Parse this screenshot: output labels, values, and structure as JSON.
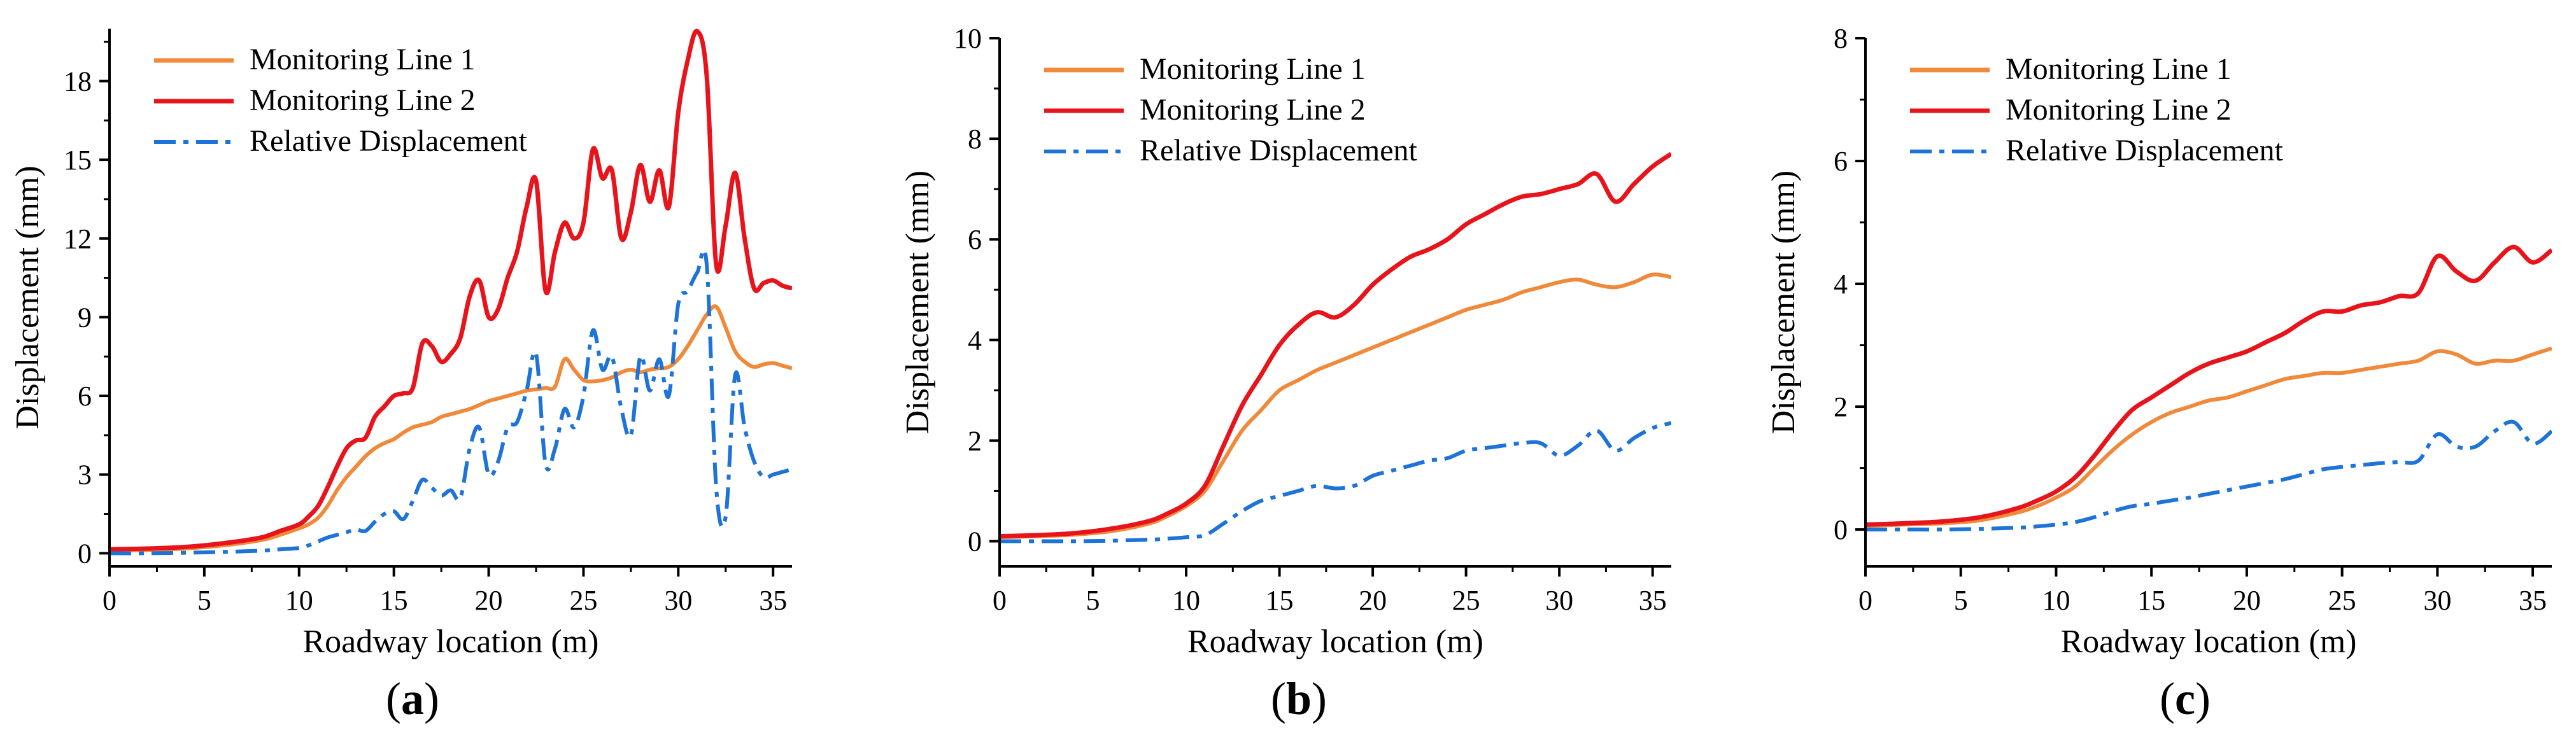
{
  "figure": {
    "panel_labels": [
      "(a)",
      "(b)",
      "(c)"
    ]
  },
  "chart_data": [
    {
      "type": "line",
      "panel": "(a)",
      "xlabel": "Roadway location (m)",
      "ylabel": "Displacement (mm)",
      "xlim": [
        0,
        36
      ],
      "ylim": [
        -0.5,
        20
      ],
      "xticks": [
        0,
        5,
        10,
        15,
        20,
        25,
        30,
        35
      ],
      "yticks": [
        0,
        3,
        6,
        9,
        12,
        15,
        18
      ],
      "legend_position": "top-left",
      "series": [
        {
          "name": "Monitoring Line 1",
          "color": "#F0893A",
          "style": "solid",
          "x": [
            0,
            2,
            4,
            6,
            8,
            9,
            10,
            10.5,
            11,
            11.5,
            12,
            12.5,
            13,
            13.5,
            14,
            14.5,
            15,
            15.5,
            16,
            16.5,
            17,
            17.5,
            18,
            18.5,
            19,
            19.5,
            20,
            20.5,
            21,
            21.5,
            22,
            22.5,
            23,
            23.5,
            24,
            24.5,
            25,
            25.5,
            26,
            26.5,
            27,
            27.5,
            28,
            28.5,
            29,
            29.5,
            30,
            30.5,
            31,
            31.5,
            32,
            32.5,
            33,
            33.5,
            34,
            34.5,
            35,
            35.5,
            36
          ],
          "y": [
            0.1,
            0.12,
            0.18,
            0.3,
            0.5,
            0.7,
            0.95,
            1.1,
            1.35,
            1.8,
            2.4,
            2.9,
            3.3,
            3.7,
            4.0,
            4.2,
            4.35,
            4.6,
            4.8,
            4.9,
            5.0,
            5.2,
            5.3,
            5.4,
            5.5,
            5.65,
            5.8,
            5.9,
            6.0,
            6.1,
            6.2,
            6.25,
            6.3,
            6.35,
            7.4,
            7.0,
            6.6,
            6.55,
            6.6,
            6.7,
            6.9,
            7.0,
            6.9,
            7.0,
            7.05,
            7.1,
            7.4,
            7.9,
            8.5,
            9.1,
            9.4,
            8.6,
            7.7,
            7.3,
            7.1,
            7.2,
            7.25,
            7.15,
            7.05
          ]
        },
        {
          "name": "Monitoring Line 2",
          "color": "#E8141B",
          "style": "solid",
          "x": [
            0,
            2,
            4,
            6,
            8,
            9,
            10,
            10.5,
            11,
            11.5,
            12,
            12.5,
            13,
            13.5,
            14,
            14.5,
            15,
            15.5,
            16,
            16.5,
            17,
            17.5,
            18,
            18.5,
            19,
            19.5,
            20,
            20.5,
            21,
            21.5,
            22,
            22.5,
            23,
            23.5,
            24,
            24.5,
            25,
            25.5,
            26,
            26.5,
            27,
            27.5,
            28,
            28.5,
            29,
            29.5,
            30,
            30.5,
            31,
            31.5,
            32,
            32.5,
            33,
            33.5,
            34,
            34.5,
            35,
            35.5,
            36
          ],
          "y": [
            0.15,
            0.18,
            0.24,
            0.38,
            0.6,
            0.85,
            1.1,
            1.4,
            1.8,
            2.5,
            3.3,
            4.0,
            4.3,
            4.4,
            5.2,
            5.6,
            6.0,
            6.1,
            6.3,
            8.0,
            7.9,
            7.3,
            7.6,
            8.2,
            9.8,
            10.4,
            9.0,
            9.3,
            10.5,
            11.5,
            13.2,
            14.2,
            10.0,
            11.5,
            12.6,
            12.0,
            12.6,
            15.4,
            14.3,
            14.6,
            12.0,
            13.0,
            14.8,
            13.4,
            14.6,
            13.2,
            16.8,
            18.8,
            19.9,
            18.2,
            11.0,
            12.5,
            14.5,
            12.0,
            10.1,
            10.3,
            10.4,
            10.2,
            10.1
          ]
        },
        {
          "name": "Relative Displacement",
          "color": "#1E73D8",
          "style": "dashdot",
          "x": [
            0,
            2,
            4,
            6,
            8,
            9,
            10,
            10.5,
            11,
            11.5,
            12,
            12.5,
            13,
            13.5,
            14,
            14.5,
            15,
            15.5,
            16,
            16.5,
            17,
            17.5,
            18,
            18.5,
            19,
            19.5,
            20,
            20.5,
            21,
            21.5,
            22,
            22.5,
            23,
            23.5,
            24,
            24.5,
            25,
            25.5,
            26,
            26.5,
            27,
            27.5,
            28,
            28.5,
            29,
            29.5,
            30,
            30.5,
            31,
            31.5,
            32,
            32.5,
            33,
            33.5,
            34,
            34.5,
            35,
            35.5,
            36
          ],
          "y": [
            0,
            0,
            0.02,
            0.05,
            0.1,
            0.15,
            0.2,
            0.3,
            0.45,
            0.6,
            0.7,
            0.8,
            0.9,
            0.85,
            1.2,
            1.5,
            1.6,
            1.3,
            2.0,
            2.8,
            2.5,
            2.2,
            2.4,
            2.1,
            4.0,
            4.8,
            3.0,
            3.5,
            4.8,
            5.0,
            6.2,
            7.6,
            3.4,
            4.0,
            5.5,
            4.8,
            6.0,
            8.5,
            7.0,
            7.5,
            5.5,
            4.5,
            7.5,
            6.2,
            7.4,
            6.0,
            9.5,
            10.0,
            10.7,
            11.0,
            2.5,
            1.4,
            6.8,
            4.8,
            3.5,
            2.9,
            3.0,
            3.1,
            3.2
          ]
        }
      ]
    },
    {
      "type": "line",
      "panel": "(b)",
      "xlabel": "Roadway location (m)",
      "ylabel": "Displacement (mm)",
      "xlim": [
        0,
        36
      ],
      "ylim": [
        -0.5,
        10
      ],
      "xticks": [
        0,
        5,
        10,
        15,
        20,
        25,
        30,
        35
      ],
      "yticks": [
        0,
        2,
        4,
        6,
        8,
        10
      ],
      "legend_position": "top-left",
      "series": [
        {
          "name": "Monitoring Line 1",
          "color": "#F0893A",
          "style": "solid",
          "x": [
            0,
            2,
            4,
            6,
            8,
            9,
            10,
            11,
            12,
            13,
            14,
            15,
            16,
            17,
            18,
            19,
            20,
            21,
            22,
            23,
            24,
            25,
            26,
            27,
            28,
            29,
            30,
            31,
            32,
            33,
            34,
            35,
            36
          ],
          "y": [
            0.08,
            0.1,
            0.13,
            0.2,
            0.35,
            0.5,
            0.7,
            1.0,
            1.6,
            2.2,
            2.6,
            3.0,
            3.2,
            3.4,
            3.55,
            3.7,
            3.85,
            4.0,
            4.15,
            4.3,
            4.45,
            4.6,
            4.7,
            4.8,
            4.95,
            5.05,
            5.15,
            5.2,
            5.1,
            5.05,
            5.15,
            5.3,
            5.25
          ]
        },
        {
          "name": "Monitoring Line 2",
          "color": "#E8141B",
          "style": "solid",
          "x": [
            0,
            2,
            4,
            6,
            8,
            9,
            10,
            11,
            12,
            13,
            14,
            15,
            16,
            17,
            18,
            19,
            20,
            21,
            22,
            23,
            24,
            25,
            26,
            27,
            28,
            29,
            30,
            31,
            32,
            33,
            34,
            35,
            36
          ],
          "y": [
            0.1,
            0.12,
            0.16,
            0.25,
            0.4,
            0.55,
            0.75,
            1.1,
            1.9,
            2.7,
            3.3,
            3.9,
            4.3,
            4.55,
            4.45,
            4.7,
            5.1,
            5.4,
            5.65,
            5.8,
            6.0,
            6.3,
            6.5,
            6.7,
            6.85,
            6.9,
            7.0,
            7.1,
            7.3,
            6.75,
            7.1,
            7.45,
            7.7
          ]
        },
        {
          "name": "Relative Displacement",
          "color": "#1E73D8",
          "style": "dashdot",
          "x": [
            0,
            2,
            4,
            6,
            8,
            9,
            10,
            11,
            12,
            13,
            14,
            15,
            16,
            17,
            18,
            19,
            20,
            21,
            22,
            23,
            24,
            25,
            26,
            27,
            28,
            29,
            30,
            31,
            32,
            33,
            34,
            35,
            36
          ],
          "y": [
            0,
            0,
            0,
            0.01,
            0.03,
            0.05,
            0.08,
            0.12,
            0.35,
            0.6,
            0.8,
            0.9,
            1.0,
            1.1,
            1.05,
            1.1,
            1.3,
            1.4,
            1.5,
            1.6,
            1.65,
            1.8,
            1.85,
            1.9,
            1.95,
            1.95,
            1.7,
            1.9,
            2.2,
            1.8,
            2.05,
            2.25,
            2.35
          ]
        }
      ]
    },
    {
      "type": "line",
      "panel": "(c)",
      "xlabel": "Roadway location (m)",
      "ylabel": "Displacement (mm)",
      "xlim": [
        0,
        36
      ],
      "ylim": [
        -0.6,
        8
      ],
      "xticks": [
        0,
        5,
        10,
        15,
        20,
        25,
        30,
        35
      ],
      "yticks": [
        0,
        2,
        4,
        6,
        8
      ],
      "legend_position": "top-left",
      "series": [
        {
          "name": "Monitoring Line 1",
          "color": "#F0893A",
          "style": "solid",
          "x": [
            0,
            2,
            4,
            6,
            8,
            9,
            10,
            11,
            12,
            13,
            14,
            15,
            16,
            17,
            18,
            19,
            20,
            21,
            22,
            23,
            24,
            25,
            26,
            27,
            28,
            29,
            30,
            31,
            32,
            33,
            34,
            35,
            36
          ],
          "y": [
            0.06,
            0.08,
            0.1,
            0.15,
            0.28,
            0.38,
            0.52,
            0.7,
            1.0,
            1.3,
            1.55,
            1.75,
            1.9,
            2.0,
            2.1,
            2.15,
            2.25,
            2.35,
            2.45,
            2.5,
            2.55,
            2.55,
            2.6,
            2.65,
            2.7,
            2.75,
            2.9,
            2.85,
            2.7,
            2.75,
            2.75,
            2.85,
            2.95
          ]
        },
        {
          "name": "Monitoring Line 2",
          "color": "#E8141B",
          "style": "solid",
          "x": [
            0,
            2,
            4,
            6,
            8,
            9,
            10,
            11,
            12,
            13,
            14,
            15,
            16,
            17,
            18,
            19,
            20,
            21,
            22,
            23,
            24,
            25,
            26,
            27,
            28,
            29,
            30,
            31,
            32,
            33,
            34,
            35,
            36
          ],
          "y": [
            0.08,
            0.1,
            0.13,
            0.2,
            0.35,
            0.47,
            0.62,
            0.85,
            1.2,
            1.6,
            1.95,
            2.15,
            2.35,
            2.55,
            2.7,
            2.8,
            2.9,
            3.05,
            3.2,
            3.4,
            3.55,
            3.55,
            3.65,
            3.7,
            3.8,
            3.85,
            4.45,
            4.2,
            4.05,
            4.35,
            4.6,
            4.35,
            4.55
          ]
        },
        {
          "name": "Relative Displacement",
          "color": "#1E73D8",
          "style": "dashdot",
          "x": [
            0,
            2,
            4,
            6,
            8,
            9,
            10,
            11,
            12,
            13,
            14,
            15,
            16,
            17,
            18,
            19,
            20,
            21,
            22,
            23,
            24,
            25,
            26,
            27,
            28,
            29,
            30,
            31,
            32,
            33,
            34,
            35,
            36
          ],
          "y": [
            0,
            0,
            0,
            0.01,
            0.03,
            0.05,
            0.08,
            0.12,
            0.2,
            0.3,
            0.38,
            0.42,
            0.47,
            0.52,
            0.58,
            0.64,
            0.7,
            0.76,
            0.82,
            0.9,
            0.98,
            1.02,
            1.05,
            1.08,
            1.1,
            1.12,
            1.55,
            1.35,
            1.35,
            1.6,
            1.75,
            1.4,
            1.6
          ]
        }
      ]
    }
  ]
}
